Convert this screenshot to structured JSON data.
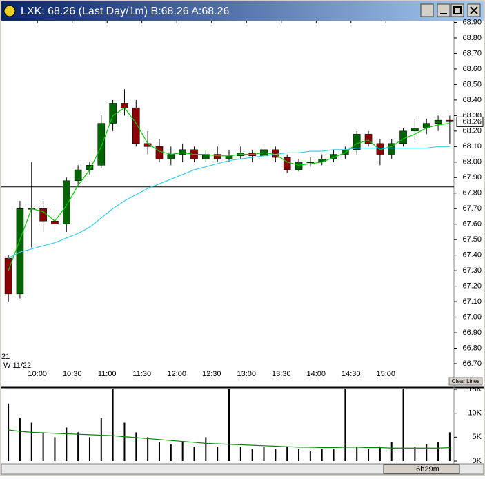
{
  "window": {
    "title": "LXK: 68.26 (Last Day/1m)  B:68.26 A:68.26",
    "day_label": "21",
    "date_label": "W 11/22",
    "clear_button": "Clear Lines",
    "scroll_label": "6h29m"
  },
  "chart_data": [
    {
      "type": "candlestick",
      "last_label": "68.26",
      "hline": 67.84,
      "x": [
        575,
        585,
        595,
        605,
        615,
        625,
        635,
        645,
        655,
        665,
        675,
        685,
        695,
        705,
        715,
        725,
        735,
        745,
        755,
        765,
        775,
        785,
        795,
        805,
        815,
        825,
        835,
        845,
        855,
        865,
        875,
        885,
        895,
        905,
        915,
        925,
        935,
        945,
        955
      ],
      "open": [
        67.38,
        67.15,
        67.7,
        67.7,
        67.62,
        67.6,
        67.88,
        67.95,
        67.98,
        68.25,
        68.38,
        68.35,
        68.12,
        68.1,
        68.02,
        68.05,
        68.08,
        68.02,
        68.05,
        68.02,
        68.04,
        68.06,
        68.04,
        68.08,
        68.03,
        67.95,
        68.0,
        68.0,
        68.02,
        68.05,
        68.08,
        68.18,
        68.12,
        68.05,
        68.12,
        68.2,
        68.22,
        68.25,
        68.27
      ],
      "high": [
        67.4,
        67.75,
        68.0,
        67.75,
        67.72,
        67.9,
        67.98,
        68.0,
        68.3,
        68.4,
        68.47,
        68.4,
        68.2,
        68.15,
        68.1,
        68.12,
        68.1,
        68.08,
        68.1,
        68.08,
        68.1,
        68.08,
        68.1,
        68.1,
        68.05,
        68.02,
        68.03,
        68.05,
        68.08,
        68.1,
        68.2,
        68.2,
        68.15,
        68.15,
        68.22,
        68.28,
        68.28,
        68.3,
        68.3
      ],
      "low": [
        67.1,
        67.12,
        67.45,
        67.55,
        67.55,
        67.55,
        67.85,
        67.92,
        67.96,
        68.2,
        68.3,
        68.1,
        68.05,
        68.0,
        67.98,
        68.0,
        68.0,
        68.0,
        68.0,
        68.0,
        68.02,
        68.0,
        68.02,
        68.0,
        67.93,
        67.94,
        67.97,
        67.98,
        68.0,
        68.02,
        68.05,
        68.1,
        67.98,
        68.02,
        68.1,
        68.15,
        68.18,
        68.2,
        68.12
      ],
      "close": [
        67.15,
        67.7,
        67.7,
        67.62,
        67.6,
        67.88,
        67.95,
        67.98,
        68.25,
        68.38,
        68.35,
        68.12,
        68.1,
        68.02,
        68.05,
        68.08,
        68.02,
        68.05,
        68.02,
        68.04,
        68.06,
        68.04,
        68.08,
        68.03,
        67.95,
        68.0,
        68.0,
        68.02,
        68.05,
        68.08,
        68.18,
        68.12,
        68.05,
        68.12,
        68.2,
        68.22,
        68.25,
        68.27,
        68.26
      ],
      "series": [
        {
          "color": "#00cc00",
          "values": [
            67.3,
            67.5,
            67.7,
            67.68,
            67.62,
            67.72,
            67.85,
            67.95,
            68.1,
            68.3,
            68.35,
            68.25,
            68.12,
            68.07,
            68.05,
            68.06,
            68.05,
            68.05,
            68.04,
            68.04,
            68.05,
            68.05,
            68.06,
            68.05,
            68.0,
            67.98,
            67.99,
            68.0,
            68.03,
            68.06,
            68.12,
            68.14,
            68.08,
            68.1,
            68.15,
            68.18,
            68.22,
            68.24,
            68.25
          ]
        },
        {
          "color": "#33ccee",
          "values": [
            67.38,
            67.42,
            67.44,
            67.46,
            67.48,
            67.51,
            67.54,
            67.58,
            67.64,
            67.7,
            67.75,
            67.79,
            67.83,
            67.86,
            67.89,
            67.92,
            67.95,
            67.97,
            67.99,
            68.01,
            68.02,
            68.03,
            68.04,
            68.05,
            68.06,
            68.06,
            68.07,
            68.07,
            68.08,
            68.08,
            68.09,
            68.09,
            68.09,
            68.09,
            68.09,
            68.09,
            68.09,
            68.1,
            68.1
          ]
        }
      ],
      "xlim": [
        569,
        961
      ],
      "xticks": [
        {
          "value": 600,
          "label": "10:00"
        },
        {
          "value": 630,
          "label": "10:30"
        },
        {
          "value": 660,
          "label": "11:00"
        },
        {
          "value": 690,
          "label": "11:30"
        },
        {
          "value": 720,
          "label": "12:00"
        },
        {
          "value": 750,
          "label": "12:30"
        },
        {
          "value": 780,
          "label": "13:00"
        },
        {
          "value": 810,
          "label": "13:30"
        },
        {
          "value": 840,
          "label": "14:00"
        },
        {
          "value": 870,
          "label": "14:30"
        },
        {
          "value": 900,
          "label": "15:00"
        }
      ],
      "ylim": [
        66.62,
        68.92
      ],
      "yticks": [
        {
          "value": 66.7,
          "label": "66.70"
        },
        {
          "value": 66.8,
          "label": "66.80"
        },
        {
          "value": 66.9,
          "label": "66.90"
        },
        {
          "value": 67.0,
          "label": "67.00"
        },
        {
          "value": 67.1,
          "label": "67.10"
        },
        {
          "value": 67.2,
          "label": "67.20"
        },
        {
          "value": 67.3,
          "label": "67.30"
        },
        {
          "value": 67.4,
          "label": "67.40"
        },
        {
          "value": 67.5,
          "label": "67.50"
        },
        {
          "value": 67.6,
          "label": "67.60"
        },
        {
          "value": 67.7,
          "label": "67.70"
        },
        {
          "value": 67.8,
          "label": "67.80"
        },
        {
          "value": 67.9,
          "label": "67.90"
        },
        {
          "value": 68.0,
          "label": "68.00"
        },
        {
          "value": 68.1,
          "label": "68.10"
        },
        {
          "value": 68.2,
          "label": "68.20"
        },
        {
          "value": 68.3,
          "label": "68.30"
        },
        {
          "value": 68.4,
          "label": "68.40"
        },
        {
          "value": 68.5,
          "label": "68.50"
        },
        {
          "value": 68.6,
          "label": "68.60"
        },
        {
          "value": 68.7,
          "label": "68.70"
        },
        {
          "value": 68.8,
          "label": "68.80"
        },
        {
          "value": 68.9,
          "label": "68.90"
        }
      ],
      "up_color": "#006400",
      "down_color": "#8b0000"
    },
    {
      "type": "bar",
      "color": "#000000",
      "x": [
        575,
        585,
        595,
        605,
        615,
        625,
        635,
        645,
        655,
        665,
        675,
        685,
        695,
        705,
        715,
        725,
        735,
        745,
        755,
        765,
        775,
        785,
        795,
        805,
        815,
        825,
        835,
        845,
        855,
        865,
        875,
        885,
        895,
        905,
        915,
        925,
        935,
        945,
        955
      ],
      "values": [
        12000,
        9000,
        8000,
        6000,
        5000,
        7000,
        6000,
        5000,
        9000,
        15000,
        8000,
        6000,
        5000,
        4000,
        3500,
        4000,
        3000,
        5000,
        3000,
        15000,
        3000,
        2500,
        3000,
        2500,
        3000,
        2500,
        2000,
        2500,
        2500,
        15000,
        3000,
        2500,
        3000,
        4000,
        15000,
        3000,
        3500,
        4000,
        6000
      ],
      "series": [
        {
          "color": "#008800",
          "values": [
            6500,
            6200,
            6000,
            5900,
            5800,
            5700,
            5600,
            5500,
            5400,
            5300,
            5100,
            4900,
            4700,
            4500,
            4300,
            4100,
            3900,
            3700,
            3600,
            3500,
            3400,
            3300,
            3200,
            3100,
            3000,
            2900,
            2900,
            2800,
            2800,
            2900,
            2900,
            2800,
            2800,
            2700,
            2700,
            2700,
            2700,
            2700,
            2800
          ]
        }
      ],
      "xlim": [
        569,
        961
      ],
      "ylim": [
        0,
        15000
      ],
      "yticks": [
        {
          "value": 0,
          "label": "0K"
        },
        {
          "value": 5000,
          "label": "5K"
        },
        {
          "value": 10000,
          "label": "10K"
        },
        {
          "value": 15000,
          "label": "15K"
        }
      ]
    }
  ]
}
